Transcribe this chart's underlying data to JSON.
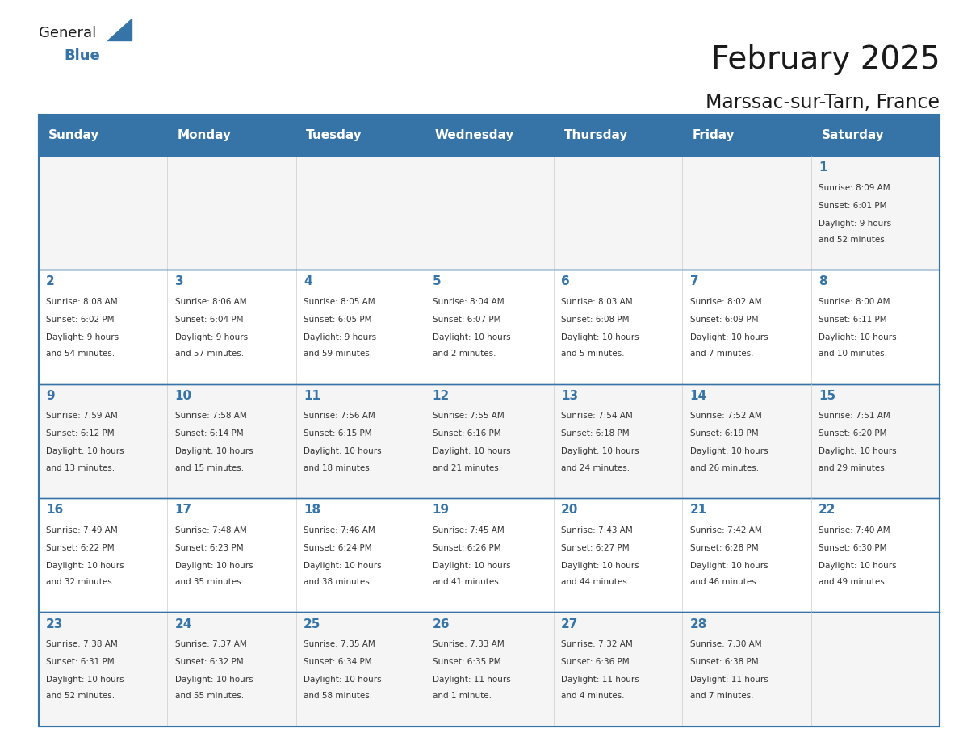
{
  "title": "February 2025",
  "subtitle": "Marssac-sur-Tarn, France",
  "header_bg": "#3674a8",
  "header_text": "#ffffff",
  "cell_bg_odd": "#f0f4f8",
  "cell_bg_even": "#ffffff",
  "border_color": "#3674a8",
  "day_headers": [
    "Sunday",
    "Monday",
    "Tuesday",
    "Wednesday",
    "Thursday",
    "Friday",
    "Saturday"
  ],
  "title_color": "#1a1a1a",
  "subtitle_color": "#1a1a1a",
  "day_number_color": "#3674a8",
  "text_color": "#333333",
  "weeks": [
    [
      {
        "day": 0,
        "num": "",
        "sunrise": "",
        "sunset": "",
        "daylight": ""
      },
      {
        "day": 1,
        "num": "",
        "sunrise": "",
        "sunset": "",
        "daylight": ""
      },
      {
        "day": 2,
        "num": "",
        "sunrise": "",
        "sunset": "",
        "daylight": ""
      },
      {
        "day": 3,
        "num": "",
        "sunrise": "",
        "sunset": "",
        "daylight": ""
      },
      {
        "day": 4,
        "num": "",
        "sunrise": "",
        "sunset": "",
        "daylight": ""
      },
      {
        "day": 5,
        "num": "",
        "sunrise": "",
        "sunset": "",
        "daylight": ""
      },
      {
        "day": 6,
        "num": "1",
        "sunrise": "Sunrise: 8:09 AM",
        "sunset": "Sunset: 6:01 PM",
        "daylight": "Daylight: 9 hours\nand 52 minutes."
      }
    ],
    [
      {
        "day": 0,
        "num": "2",
        "sunrise": "Sunrise: 8:08 AM",
        "sunset": "Sunset: 6:02 PM",
        "daylight": "Daylight: 9 hours\nand 54 minutes."
      },
      {
        "day": 1,
        "num": "3",
        "sunrise": "Sunrise: 8:06 AM",
        "sunset": "Sunset: 6:04 PM",
        "daylight": "Daylight: 9 hours\nand 57 minutes."
      },
      {
        "day": 2,
        "num": "4",
        "sunrise": "Sunrise: 8:05 AM",
        "sunset": "Sunset: 6:05 PM",
        "daylight": "Daylight: 9 hours\nand 59 minutes."
      },
      {
        "day": 3,
        "num": "5",
        "sunrise": "Sunrise: 8:04 AM",
        "sunset": "Sunset: 6:07 PM",
        "daylight": "Daylight: 10 hours\nand 2 minutes."
      },
      {
        "day": 4,
        "num": "6",
        "sunrise": "Sunrise: 8:03 AM",
        "sunset": "Sunset: 6:08 PM",
        "daylight": "Daylight: 10 hours\nand 5 minutes."
      },
      {
        "day": 5,
        "num": "7",
        "sunrise": "Sunrise: 8:02 AM",
        "sunset": "Sunset: 6:09 PM",
        "daylight": "Daylight: 10 hours\nand 7 minutes."
      },
      {
        "day": 6,
        "num": "8",
        "sunrise": "Sunrise: 8:00 AM",
        "sunset": "Sunset: 6:11 PM",
        "daylight": "Daylight: 10 hours\nand 10 minutes."
      }
    ],
    [
      {
        "day": 0,
        "num": "9",
        "sunrise": "Sunrise: 7:59 AM",
        "sunset": "Sunset: 6:12 PM",
        "daylight": "Daylight: 10 hours\nand 13 minutes."
      },
      {
        "day": 1,
        "num": "10",
        "sunrise": "Sunrise: 7:58 AM",
        "sunset": "Sunset: 6:14 PM",
        "daylight": "Daylight: 10 hours\nand 15 minutes."
      },
      {
        "day": 2,
        "num": "11",
        "sunrise": "Sunrise: 7:56 AM",
        "sunset": "Sunset: 6:15 PM",
        "daylight": "Daylight: 10 hours\nand 18 minutes."
      },
      {
        "day": 3,
        "num": "12",
        "sunrise": "Sunrise: 7:55 AM",
        "sunset": "Sunset: 6:16 PM",
        "daylight": "Daylight: 10 hours\nand 21 minutes."
      },
      {
        "day": 4,
        "num": "13",
        "sunrise": "Sunrise: 7:54 AM",
        "sunset": "Sunset: 6:18 PM",
        "daylight": "Daylight: 10 hours\nand 24 minutes."
      },
      {
        "day": 5,
        "num": "14",
        "sunrise": "Sunrise: 7:52 AM",
        "sunset": "Sunset: 6:19 PM",
        "daylight": "Daylight: 10 hours\nand 26 minutes."
      },
      {
        "day": 6,
        "num": "15",
        "sunrise": "Sunrise: 7:51 AM",
        "sunset": "Sunset: 6:20 PM",
        "daylight": "Daylight: 10 hours\nand 29 minutes."
      }
    ],
    [
      {
        "day": 0,
        "num": "16",
        "sunrise": "Sunrise: 7:49 AM",
        "sunset": "Sunset: 6:22 PM",
        "daylight": "Daylight: 10 hours\nand 32 minutes."
      },
      {
        "day": 1,
        "num": "17",
        "sunrise": "Sunrise: 7:48 AM",
        "sunset": "Sunset: 6:23 PM",
        "daylight": "Daylight: 10 hours\nand 35 minutes."
      },
      {
        "day": 2,
        "num": "18",
        "sunrise": "Sunrise: 7:46 AM",
        "sunset": "Sunset: 6:24 PM",
        "daylight": "Daylight: 10 hours\nand 38 minutes."
      },
      {
        "day": 3,
        "num": "19",
        "sunrise": "Sunrise: 7:45 AM",
        "sunset": "Sunset: 6:26 PM",
        "daylight": "Daylight: 10 hours\nand 41 minutes."
      },
      {
        "day": 4,
        "num": "20",
        "sunrise": "Sunrise: 7:43 AM",
        "sunset": "Sunset: 6:27 PM",
        "daylight": "Daylight: 10 hours\nand 44 minutes."
      },
      {
        "day": 5,
        "num": "21",
        "sunrise": "Sunrise: 7:42 AM",
        "sunset": "Sunset: 6:28 PM",
        "daylight": "Daylight: 10 hours\nand 46 minutes."
      },
      {
        "day": 6,
        "num": "22",
        "sunrise": "Sunrise: 7:40 AM",
        "sunset": "Sunset: 6:30 PM",
        "daylight": "Daylight: 10 hours\nand 49 minutes."
      }
    ],
    [
      {
        "day": 0,
        "num": "23",
        "sunrise": "Sunrise: 7:38 AM",
        "sunset": "Sunset: 6:31 PM",
        "daylight": "Daylight: 10 hours\nand 52 minutes."
      },
      {
        "day": 1,
        "num": "24",
        "sunrise": "Sunrise: 7:37 AM",
        "sunset": "Sunset: 6:32 PM",
        "daylight": "Daylight: 10 hours\nand 55 minutes."
      },
      {
        "day": 2,
        "num": "25",
        "sunrise": "Sunrise: 7:35 AM",
        "sunset": "Sunset: 6:34 PM",
        "daylight": "Daylight: 10 hours\nand 58 minutes."
      },
      {
        "day": 3,
        "num": "26",
        "sunrise": "Sunrise: 7:33 AM",
        "sunset": "Sunset: 6:35 PM",
        "daylight": "Daylight: 11 hours\nand 1 minute."
      },
      {
        "day": 4,
        "num": "27",
        "sunrise": "Sunrise: 7:32 AM",
        "sunset": "Sunset: 6:36 PM",
        "daylight": "Daylight: 11 hours\nand 4 minutes."
      },
      {
        "day": 5,
        "num": "28",
        "sunrise": "Sunrise: 7:30 AM",
        "sunset": "Sunset: 6:38 PM",
        "daylight": "Daylight: 11 hours\nand 7 minutes."
      },
      {
        "day": 6,
        "num": "",
        "sunrise": "",
        "sunset": "",
        "daylight": ""
      }
    ]
  ]
}
